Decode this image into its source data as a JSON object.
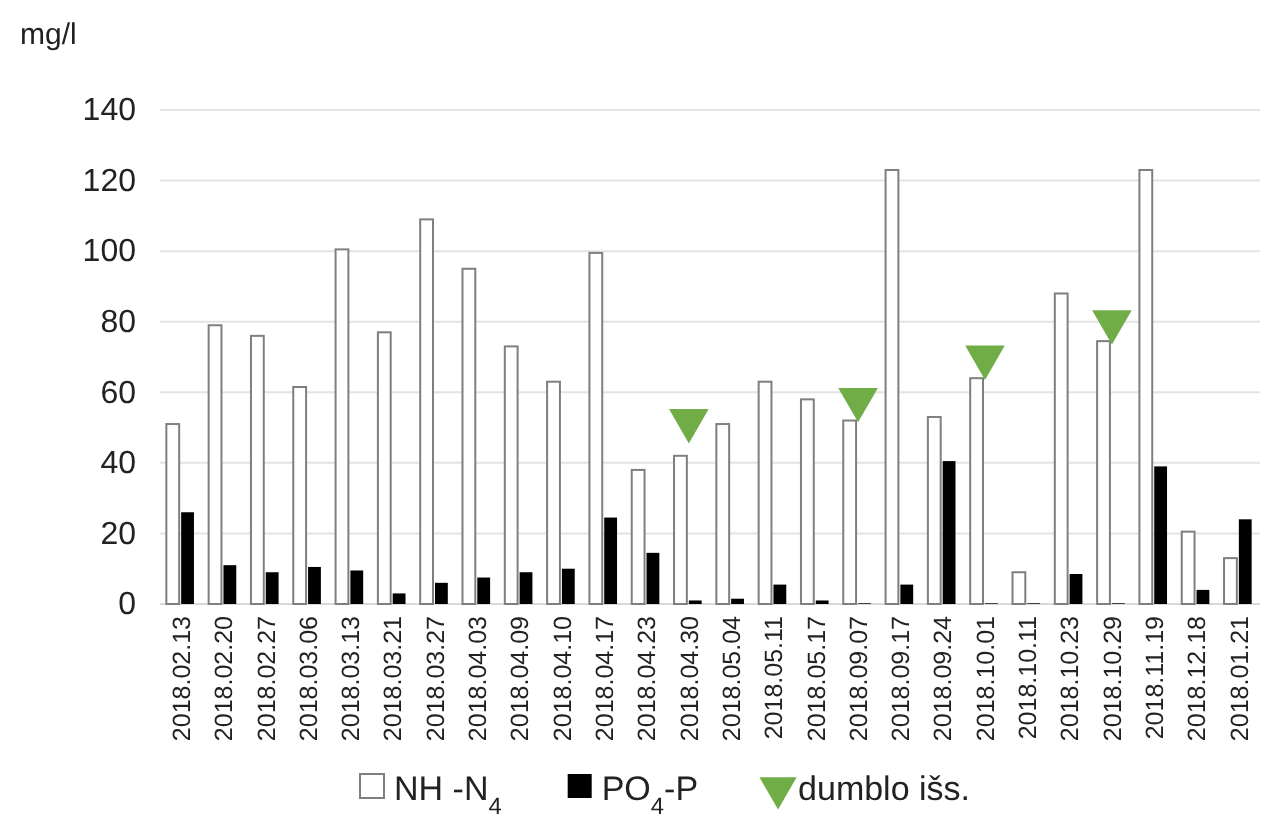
{
  "chart_data": {
    "type": "bar",
    "ylabel": "mg/l",
    "categories": [
      "2018.02.13",
      "2018.02.20",
      "2018.02.27",
      "2018.03.06",
      "2018.03.13",
      "2018.03.21",
      "2018.03.27",
      "2018.04.03",
      "2018.04.09",
      "2018.04.10",
      "2018.04.17",
      "2018.04.23",
      "2018.04.30",
      "2018.05.04",
      "2018.05.11",
      "2018.05.17",
      "2018.09.07",
      "2018.09.17",
      "2018.09.24",
      "2018.10.01",
      "2018.10.11",
      "2018.10.23",
      "2018.10.29",
      "2018.11.19",
      "2018.12.18",
      "2018.01.21"
    ],
    "series": [
      {
        "name": "NH  -N$_{4}$",
        "color": "#ffffff",
        "values": [
          51,
          79,
          76,
          61.5,
          100.5,
          77,
          109,
          95,
          73,
          63,
          99.5,
          38,
          42,
          51,
          63,
          58,
          52,
          123,
          53,
          64,
          9,
          88,
          74.5,
          123,
          20.5,
          13
        ]
      },
      {
        "name": "PO$_{4}$-P",
        "color": "#000000",
        "values": [
          26,
          11,
          9,
          10.5,
          9.5,
          3,
          6,
          7.5,
          9,
          10,
          24.5,
          14.5,
          1,
          1.5,
          5.5,
          1,
          0.2,
          5.5,
          40.5,
          0.2,
          0.2,
          8.5,
          0.2,
          39,
          4,
          24
        ]
      },
      {
        "name": "dumblo išs.",
        "type": "scatter",
        "color": "#70ad47",
        "marker": "triangle",
        "values": [
          null,
          null,
          null,
          null,
          null,
          null,
          null,
          null,
          null,
          null,
          null,
          null,
          52,
          null,
          null,
          null,
          58,
          null,
          null,
          70,
          null,
          null,
          80,
          null,
          null,
          null
        ]
      }
    ],
    "ylim": [
      0,
      140
    ],
    "yticks": [
      0,
      20,
      40,
      60,
      80,
      100,
      120,
      140
    ],
    "grid": "y",
    "legend": "bottom"
  }
}
